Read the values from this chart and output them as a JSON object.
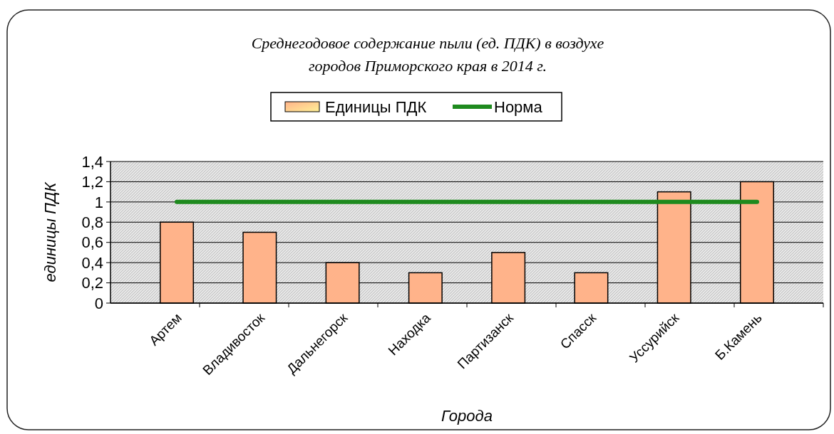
{
  "chart_data": {
    "type": "bar",
    "title": "Среднегодовое содержание пыли (ед. ПДК) в воздухе\nгородов Приморского края в 2014 г.",
    "xlabel": "Города",
    "ylabel": "единицы ПДК",
    "categories": [
      "Артем",
      "Владивосток",
      "Дальнегорск",
      "Находка",
      "Партизанск",
      "Спасск",
      "Уссурийск",
      "Б.Камень"
    ],
    "series": [
      {
        "name": "Единицы ПДК",
        "color": "#ffb38a",
        "values": [
          0.8,
          0.7,
          0.4,
          0.3,
          0.5,
          0.3,
          1.1,
          1.2
        ]
      },
      {
        "name": "Норма",
        "type": "line",
        "color": "#1e8a1e",
        "values": [
          1,
          1,
          1,
          1,
          1,
          1,
          1,
          1
        ]
      }
    ],
    "ylim": [
      0,
      1.4
    ],
    "yticks": [
      0,
      {
        "value": 0.2,
        "label": "0,2"
      },
      {
        "value": 0.4,
        "label": "0,4"
      },
      {
        "value": 0.6,
        "label": "0,6"
      },
      {
        "value": 0.8,
        "label": "0,8"
      },
      1,
      {
        "value": 1.2,
        "label": "1,2"
      },
      {
        "value": 1.4,
        "label": "1,4"
      }
    ],
    "grid": "y",
    "legend": "top"
  }
}
